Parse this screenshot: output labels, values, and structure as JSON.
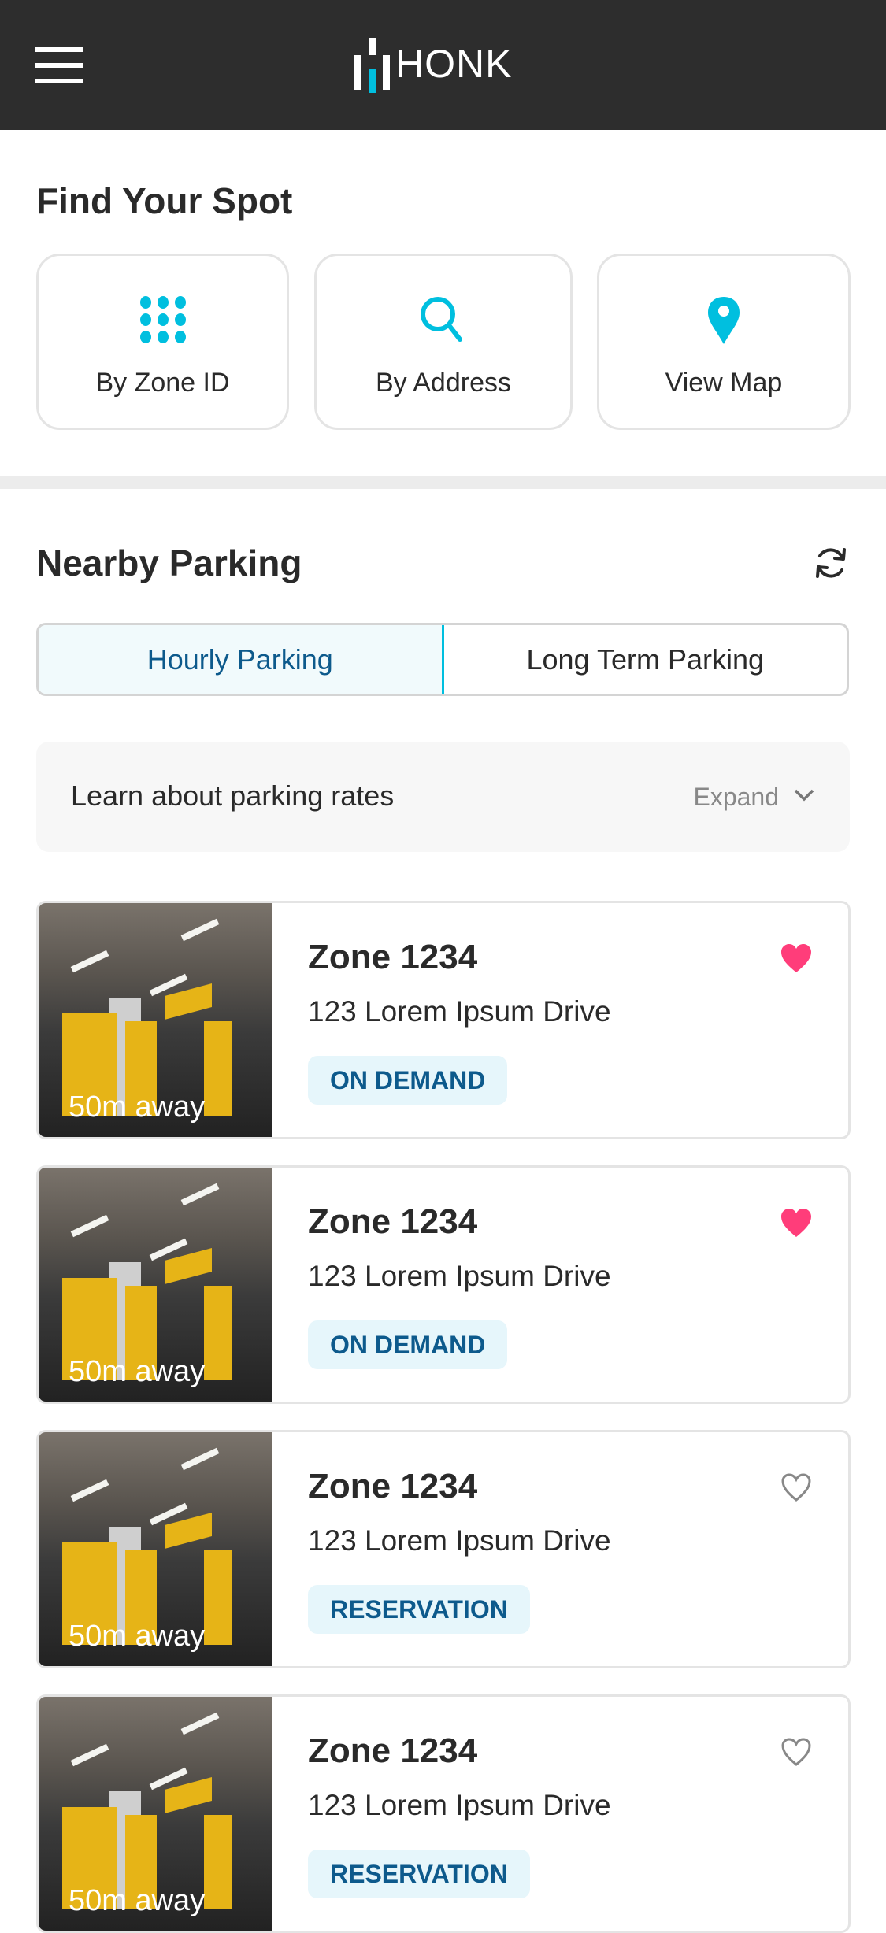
{
  "header": {
    "logo_text": "HONK",
    "menu_icon": "hamburger-menu-icon"
  },
  "find": {
    "title": "Find Your Spot",
    "buttons": [
      {
        "label": "By Zone ID",
        "icon": "keypad-dots-icon"
      },
      {
        "label": "By Address",
        "icon": "search-icon"
      },
      {
        "label": "View Map",
        "icon": "map-pin-icon"
      }
    ]
  },
  "nearby": {
    "title": "Nearby Parking",
    "refresh_icon": "refresh-icon",
    "tabs": [
      {
        "label": "Hourly Parking",
        "active": true
      },
      {
        "label": "Long Term Parking",
        "active": false
      }
    ],
    "rates": {
      "label": "Learn about parking rates",
      "expand": "Expand"
    }
  },
  "colors": {
    "accent": "#00bfdf",
    "brand_dark": "#2d2d2d",
    "badge_text": "#0d5a8c",
    "favorite": "#ff3d7a"
  },
  "cards": [
    {
      "zone": "Zone 1234",
      "address": "123 Lorem Ipsum Drive",
      "badge": "ON DEMAND",
      "distance": "50m away",
      "favorite": true
    },
    {
      "zone": "Zone 1234",
      "address": "123 Lorem Ipsum Drive",
      "badge": "ON DEMAND",
      "distance": "50m away",
      "favorite": true
    },
    {
      "zone": "Zone 1234",
      "address": "123 Lorem Ipsum Drive",
      "badge": "RESERVATION",
      "distance": "50m away",
      "favorite": false
    },
    {
      "zone": "Zone 1234",
      "address": "123 Lorem Ipsum Drive",
      "badge": "RESERVATION",
      "distance": "50m away",
      "favorite": false
    }
  ]
}
